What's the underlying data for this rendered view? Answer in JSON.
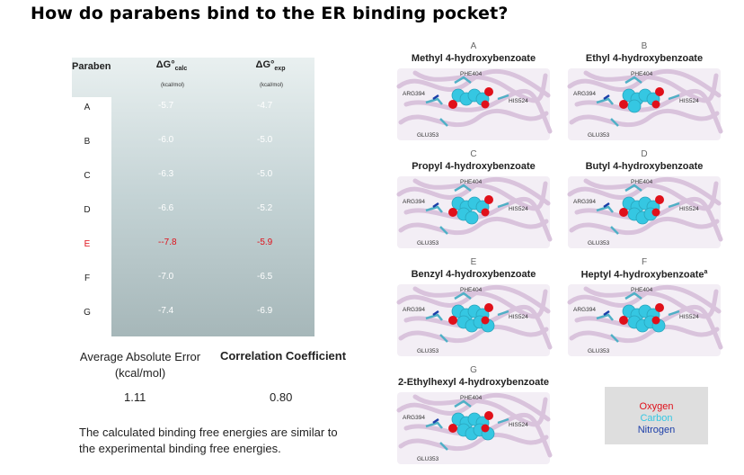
{
  "title": "How do parabens bind to the ER binding pocket?",
  "table": {
    "headers": {
      "paraben": "Paraben",
      "calc_symbol": "ΔG°",
      "calc_sub": "calc",
      "calc_unit": "(kcal/mol)",
      "exp_symbol": "ΔG°",
      "exp_sub": "exp",
      "exp_unit": "(kcal/mol)"
    },
    "rows": [
      {
        "name": "A",
        "calc": "-5.7",
        "exp": "-4.7"
      },
      {
        "name": "B",
        "calc": "-6.0",
        "exp": "-5.0"
      },
      {
        "name": "C",
        "calc": "-6.3",
        "exp": "-5.0"
      },
      {
        "name": "D",
        "calc": "-6.6",
        "exp": "-5.2"
      },
      {
        "name": "E",
        "calc": "--7.8",
        "exp": "-5.9",
        "highlight": true
      },
      {
        "name": "F",
        "calc": "-7.0",
        "exp": "-6.5"
      },
      {
        "name": "G",
        "calc": "-7.4",
        "exp": "-6.9"
      }
    ]
  },
  "stats": {
    "aae_label": "Average Absolute Error (kcal/mol)",
    "aae_value": "1.11",
    "cc_label": "Correlation Coefficient",
    "cc_value": "0.80"
  },
  "note": "The calculated binding free energies are similar to the experimental binding free energies.",
  "residues": {
    "phe": "PHE404",
    "arg": "ARG394",
    "his": "HIS524",
    "glu": "GLU353"
  },
  "panels": [
    {
      "letter": "A",
      "title": "Methyl 4-hydroxybenzoate",
      "sup": ""
    },
    {
      "letter": "B",
      "title": "Ethyl 4-hydroxybenzoate",
      "sup": ""
    },
    {
      "letter": "C",
      "title": "Propyl 4-hydroxybenzoate",
      "sup": ""
    },
    {
      "letter": "D",
      "title": "Butyl 4-hydroxybenzoate",
      "sup": ""
    },
    {
      "letter": "E",
      "title": "Benzyl 4-hydroxybenzoate",
      "sup": ""
    },
    {
      "letter": "F",
      "title": "Heptyl 4-hydroxybenzoate",
      "sup": "a"
    },
    {
      "letter": "G",
      "title": "2-Ethylhexyl 4-hydroxybenzoate",
      "sup": ""
    }
  ],
  "legend": {
    "oxygen": "Oxygen",
    "carbon": "Carbon",
    "nitrogen": "Nitrogen"
  },
  "colors": {
    "oxygen": "#e0101a",
    "carbon": "#35c7e2",
    "nitrogen": "#1c3ea8",
    "highlight": "#e0101a"
  }
}
